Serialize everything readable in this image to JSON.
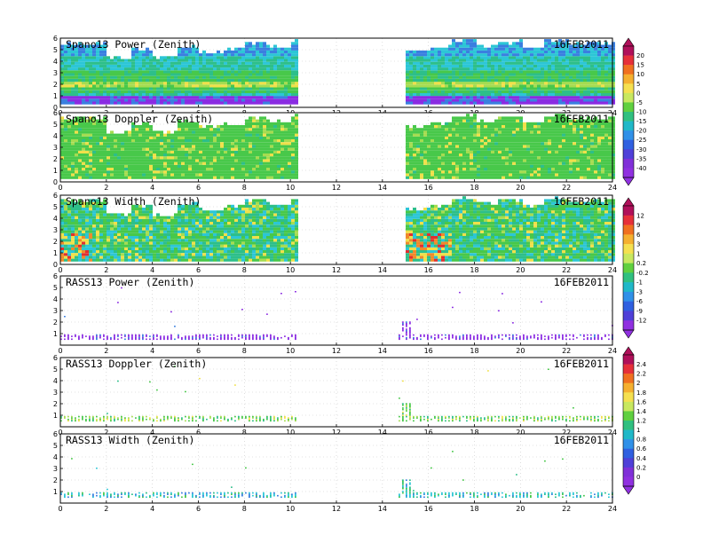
{
  "chart_data": [
    {
      "type": "heatmap",
      "title": "Spano13 Power (Zenith)",
      "date": "16FEB2011",
      "xlim": [
        0,
        24
      ],
      "ylim": [
        0,
        6
      ],
      "x_ticks": [
        "0",
        "2",
        "4",
        "6",
        "8",
        "10",
        "12",
        "14",
        "16",
        "18",
        "20",
        "22",
        "24"
      ],
      "y_ticks": [
        "0",
        "1",
        "2",
        "3",
        "4",
        "5",
        "6"
      ],
      "data_segments": [
        [
          0,
          10.2
        ],
        [
          14.7,
          24
        ]
      ],
      "top_height_profile": [
        5.6,
        5.6,
        4.4,
        5.1,
        4.4,
        5.3,
        4.8,
        5.1,
        5.6,
        5.2,
        5.8,
        5.9,
        0,
        0,
        0,
        4.9,
        5.2,
        5.8,
        5.4,
        5.7,
        5.2,
        5.8,
        5.5,
        5.6
      ],
      "field": "power",
      "colorbar_group": 0
    },
    {
      "type": "heatmap",
      "title": "Spano13 Doppler (Zenith)",
      "date": "16FEB2011",
      "xlim": [
        0,
        24
      ],
      "ylim": [
        0,
        6
      ],
      "x_ticks": [
        "0",
        "2",
        "4",
        "6",
        "8",
        "10",
        "12",
        "14",
        "16",
        "18",
        "20",
        "22",
        "24"
      ],
      "y_ticks": [
        "0",
        "1",
        "2",
        "3",
        "4",
        "5",
        "6"
      ],
      "data_segments": [
        [
          0,
          10.2
        ],
        [
          14.7,
          24
        ]
      ],
      "top_height_profile": [
        5.6,
        5.6,
        4.4,
        5.1,
        4.4,
        5.3,
        4.8,
        5.1,
        5.6,
        5.2,
        5.8,
        5.9,
        0,
        0,
        0,
        4.9,
        5.2,
        5.8,
        5.4,
        5.7,
        5.2,
        5.8,
        5.5,
        5.6
      ],
      "field": "doppler",
      "colorbar_group": 0
    },
    {
      "type": "heatmap",
      "title": "Spano13 Width (Zenith)",
      "date": "16FEB2011",
      "xlim": [
        0,
        24
      ],
      "ylim": [
        0,
        6
      ],
      "x_ticks": [
        "0",
        "2",
        "4",
        "6",
        "8",
        "10",
        "12",
        "14",
        "16",
        "18",
        "20",
        "22",
        "24"
      ],
      "y_ticks": [
        "0",
        "1",
        "2",
        "3",
        "4",
        "5",
        "6"
      ],
      "data_segments": [
        [
          0,
          10.2
        ],
        [
          14.7,
          24
        ]
      ],
      "top_height_profile": [
        5.6,
        5.6,
        4.4,
        5.1,
        4.4,
        5.3,
        4.8,
        5.1,
        5.6,
        5.2,
        5.8,
        5.9,
        0,
        0,
        0,
        4.9,
        5.2,
        5.8,
        5.4,
        5.7,
        5.2,
        5.8,
        5.5,
        5.6
      ],
      "field": "width",
      "colorbar_group": 1
    },
    {
      "type": "heatmap",
      "title": "RASS13 Power (Zenith)",
      "date": "16FEB2011",
      "xlim": [
        0,
        24
      ],
      "ylim": [
        0,
        6
      ],
      "x_ticks": [
        "0",
        "2",
        "4",
        "6",
        "8",
        "10",
        "12",
        "14",
        "16",
        "18",
        "20",
        "22",
        "24"
      ],
      "y_ticks": [
        "1",
        "2",
        "3",
        "4",
        "5",
        "6"
      ],
      "data_segments": [
        [
          0,
          10.2
        ],
        [
          14.7,
          24
        ]
      ],
      "field": "rass_power",
      "colorbar_group": 1
    },
    {
      "type": "heatmap",
      "title": "RASS13 Doppler (Zenith)",
      "date": "16FEB2011",
      "xlim": [
        0,
        24
      ],
      "ylim": [
        0,
        6
      ],
      "x_ticks": [
        "0",
        "2",
        "4",
        "6",
        "8",
        "10",
        "12",
        "14",
        "16",
        "18",
        "20",
        "22",
        "24"
      ],
      "y_ticks": [
        "1",
        "2",
        "3",
        "4",
        "5",
        "6"
      ],
      "data_segments": [
        [
          0,
          10.2
        ],
        [
          14.7,
          24
        ]
      ],
      "field": "rass_doppler",
      "colorbar_group": 2
    },
    {
      "type": "heatmap",
      "title": "RASS13 Width (Zenith)",
      "date": "16FEB2011",
      "xlim": [
        0,
        24
      ],
      "ylim": [
        0,
        6
      ],
      "x_ticks": [
        "0",
        "2",
        "4",
        "6",
        "8",
        "10",
        "12",
        "14",
        "16",
        "18",
        "20",
        "22",
        "24"
      ],
      "y_ticks": [
        "1",
        "2",
        "3",
        "4",
        "5",
        "6"
      ],
      "data_segments": [
        [
          0,
          10.2
        ],
        [
          14.7,
          24
        ]
      ],
      "field": "rass_width",
      "colorbar_group": 2
    }
  ],
  "colorbars": [
    {
      "labels": [
        "20",
        "15",
        "10",
        "5",
        "0",
        "-5",
        "-10",
        "-15",
        "-20",
        "-25",
        "-30",
        "-35",
        "-40"
      ],
      "colors": [
        "#b0105a",
        "#e6303a",
        "#f07020",
        "#f5b030",
        "#f5e050",
        "#c8e860",
        "#60d040",
        "#30c080",
        "#20b8c8",
        "#3090e8",
        "#3060e0",
        "#5040d8",
        "#8030d8",
        "#9030e0"
      ]
    },
    {
      "labels": [
        "12",
        "9",
        "6",
        "3",
        "1",
        "0.2",
        "-0.2",
        "-1",
        "-3",
        "-6",
        "-9",
        "-12"
      ],
      "colors": [
        "#b0105a",
        "#e6303a",
        "#f07020",
        "#f5b030",
        "#f5e050",
        "#c8e860",
        "#60d040",
        "#30c080",
        "#20b8c8",
        "#3090e8",
        "#3060e0",
        "#5040d8",
        "#9030e0"
      ]
    },
    {
      "labels": [
        "2.4",
        "2.2",
        "2",
        "1.8",
        "1.6",
        "1.4",
        "1.2",
        "1",
        "0.8",
        "0.6",
        "0.4",
        "0.2",
        "0"
      ],
      "colors": [
        "#b0105a",
        "#e6303a",
        "#f07020",
        "#f5b030",
        "#f5e050",
        "#c8e860",
        "#60d040",
        "#30c080",
        "#20b8c8",
        "#3090e8",
        "#3060e0",
        "#5040d8",
        "#8030d8",
        "#9030e0"
      ]
    }
  ],
  "palette": {
    "purple": "#8a2be2",
    "blue": "#3a7fe0",
    "cyan": "#2cc6d6",
    "teal": "#2dbf8a",
    "green": "#48c84a",
    "lightgreen": "#a6dc50",
    "yellow": "#f0e04a",
    "orange": "#f08a2a",
    "red": "#e03030"
  }
}
